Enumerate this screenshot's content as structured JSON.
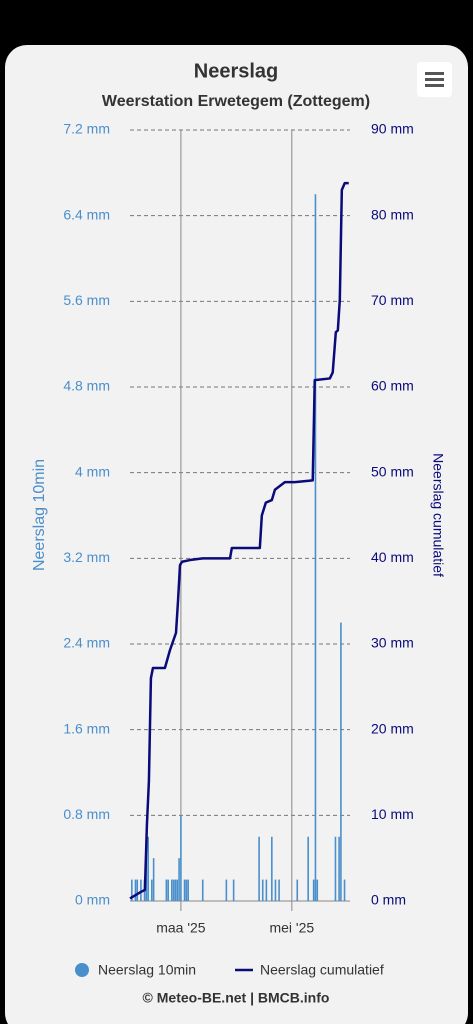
{
  "chart_data": {
    "type": "combo",
    "title": "Neerslag",
    "subtitle": "Weerstation Erwetegem (Zottegem)",
    "y_label": "Neerslag 10min",
    "y2_label": "Neerslag cumulatief",
    "credits": "© Meteo-BE.net | BMCB.info",
    "xlim": [
      0,
      121
    ],
    "xticks": [
      {
        "value": 28,
        "label": "maa '25"
      },
      {
        "value": 89,
        "label": "mei '25"
      }
    ],
    "ylim": [
      0,
      7.2
    ],
    "yticks": [
      {
        "value": 0,
        "label": "0 mm"
      },
      {
        "value": 0.8,
        "label": "0.8 mm"
      },
      {
        "value": 1.6,
        "label": "1.6 mm"
      },
      {
        "value": 2.4,
        "label": "2.4 mm"
      },
      {
        "value": 3.2,
        "label": "3.2 mm"
      },
      {
        "value": 4,
        "label": "4 mm"
      },
      {
        "value": 4.8,
        "label": "4.8 mm"
      },
      {
        "value": 5.6,
        "label": "5.6 mm"
      },
      {
        "value": 6.4,
        "label": "6.4 mm"
      },
      {
        "value": 7.2,
        "label": "7.2 mm"
      }
    ],
    "y2lim": [
      0,
      90
    ],
    "y2ticks": [
      {
        "value": 0,
        "label": "0 mm"
      },
      {
        "value": 10,
        "label": "10 mm"
      },
      {
        "value": 20,
        "label": "20 mm"
      },
      {
        "value": 30,
        "label": "30 mm"
      },
      {
        "value": 40,
        "label": "40 mm"
      },
      {
        "value": 50,
        "label": "50 mm"
      },
      {
        "value": 60,
        "label": "60 mm"
      },
      {
        "value": 70,
        "label": "70 mm"
      },
      {
        "value": 80,
        "label": "80 mm"
      },
      {
        "value": 90,
        "label": "90 mm"
      }
    ],
    "grid": true,
    "legend": "bottom",
    "series": [
      {
        "name": "Neerslag 10min",
        "type": "bar",
        "color": "#4a8fcb",
        "x": [
          1,
          3,
          4,
          6,
          8,
          9,
          10,
          12,
          13,
          20,
          21,
          23,
          24,
          25,
          26,
          27,
          28,
          30,
          31,
          32,
          40,
          53,
          57,
          71,
          73,
          75,
          78,
          80,
          82,
          92,
          98,
          101,
          102,
          103,
          113,
          115,
          116,
          118
        ],
        "values": [
          0.2,
          0.2,
          0.2,
          0.2,
          0.2,
          0.4,
          0.6,
          0.2,
          0.4,
          0.2,
          0.2,
          0.2,
          0.2,
          0.2,
          0.2,
          0.4,
          0.8,
          0.2,
          0.2,
          0.2,
          0.2,
          0.2,
          0.2,
          0.6,
          0.2,
          0.2,
          0.6,
          0.2,
          0.2,
          0.2,
          0.6,
          0.2,
          6.6,
          0.2,
          0.6,
          0.6,
          2.6,
          0.2
        ]
      },
      {
        "name": "Neerslag cumulatief",
        "type": "line",
        "axis": "y2",
        "color": "#0a0a7a",
        "x": [
          0,
          5.5,
          8.2,
          9.3,
          10.4,
          11.5,
          12.6,
          19.2,
          22,
          25.3,
          26.4,
          27.5,
          28.6,
          33,
          40,
          55,
          56,
          71.4,
          72.5,
          74.7,
          78,
          79.7,
          85.2,
          90.7,
          100.5,
          101.6,
          109.9,
          111.5,
          113.2,
          114.3,
          115.4,
          116.5,
          118.1,
          120.3
        ],
        "values": [
          0.3,
          1,
          1.3,
          8.9,
          14,
          26,
          27.2,
          27.2,
          29.3,
          31.3,
          35,
          39.2,
          39.6,
          39.8,
          40,
          40,
          41.2,
          41.2,
          45,
          46.5,
          46.8,
          48,
          48.9,
          48.9,
          49.1,
          60.8,
          61,
          61.7,
          66.4,
          66.6,
          70.2,
          83,
          83.8,
          83.8
        ]
      }
    ]
  }
}
